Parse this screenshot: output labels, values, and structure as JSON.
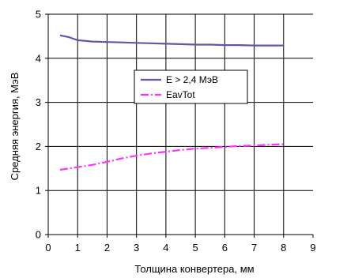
{
  "chart_data": {
    "type": "line",
    "xlabel": "Толщина конвертера, мм",
    "ylabel": "Средняя энергия, МэВ",
    "xlim": [
      0,
      9
    ],
    "ylim": [
      0,
      5
    ],
    "x_ticks": [
      "0",
      "1",
      "2",
      "3",
      "4",
      "5",
      "6",
      "7",
      "8",
      "9"
    ],
    "y_ticks": [
      "0",
      "1",
      "2",
      "3",
      "4",
      "5"
    ],
    "grid": true,
    "legend_position": "center",
    "series": [
      {
        "name": "E > 2,4 МэВ",
        "color": "#5a5aa8",
        "dash": "solid",
        "x": [
          0.4,
          0.7,
          1.0,
          1.5,
          2.0,
          2.5,
          3.0,
          3.5,
          4.0,
          4.5,
          5.0,
          5.5,
          6.0,
          6.5,
          7.0,
          7.5,
          8.0
        ],
        "y": [
          4.52,
          4.48,
          4.41,
          4.38,
          4.37,
          4.36,
          4.35,
          4.34,
          4.33,
          4.32,
          4.31,
          4.31,
          4.3,
          4.3,
          4.29,
          4.29,
          4.29
        ]
      },
      {
        "name": "EavTot",
        "color": "#ff33ff",
        "dash": "dashdot",
        "x": [
          0.4,
          0.7,
          1.0,
          1.5,
          2.0,
          2.5,
          3.0,
          3.5,
          4.0,
          4.5,
          5.0,
          5.5,
          6.0,
          6.5,
          7.0,
          7.5,
          8.0
        ],
        "y": [
          1.47,
          1.5,
          1.53,
          1.58,
          1.65,
          1.73,
          1.79,
          1.84,
          1.88,
          1.92,
          1.95,
          1.97,
          1.99,
          2.01,
          2.02,
          2.04,
          2.05
        ]
      }
    ]
  }
}
